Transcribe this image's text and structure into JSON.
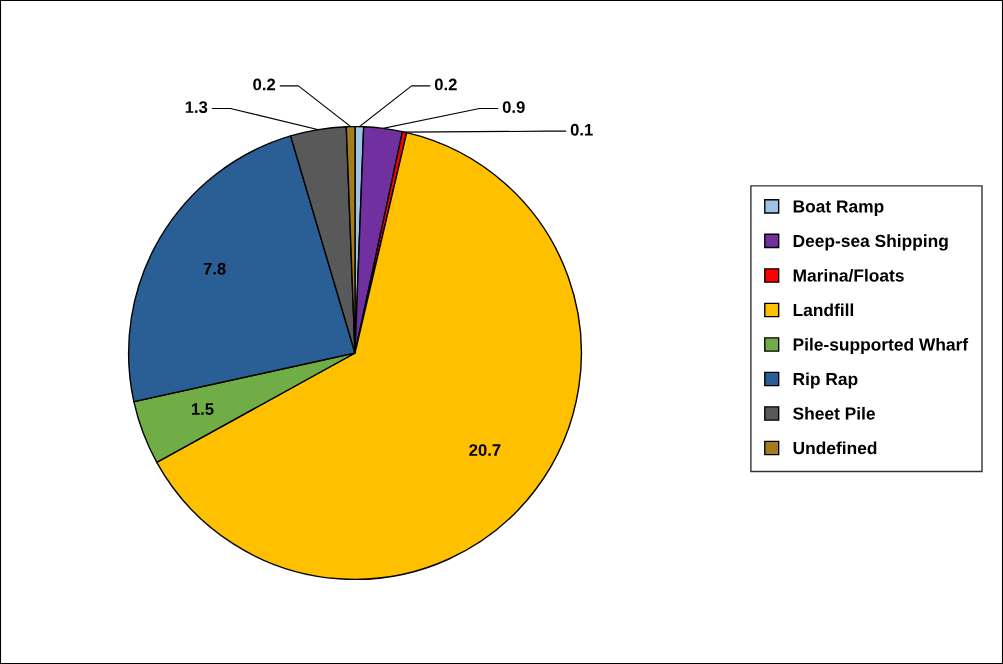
{
  "chart_data": {
    "type": "pie",
    "categories": [
      "Boat Ramp",
      "Deep-sea Shipping",
      "Marina/Floats",
      "Landfill",
      "Pile-supported Wharf",
      "Rip Rap",
      "Sheet Pile",
      "Undefined"
    ],
    "values": [
      0.2,
      0.9,
      0.1,
      20.7,
      1.5,
      7.8,
      1.3,
      0.2
    ],
    "colors": [
      "#9dc3e6",
      "#7030a0",
      "#ff0000",
      "#ffc000",
      "#70ad47",
      "#2a5f96",
      "#595959",
      "#a47c1c"
    ],
    "data_labels": true,
    "legend": "right"
  }
}
